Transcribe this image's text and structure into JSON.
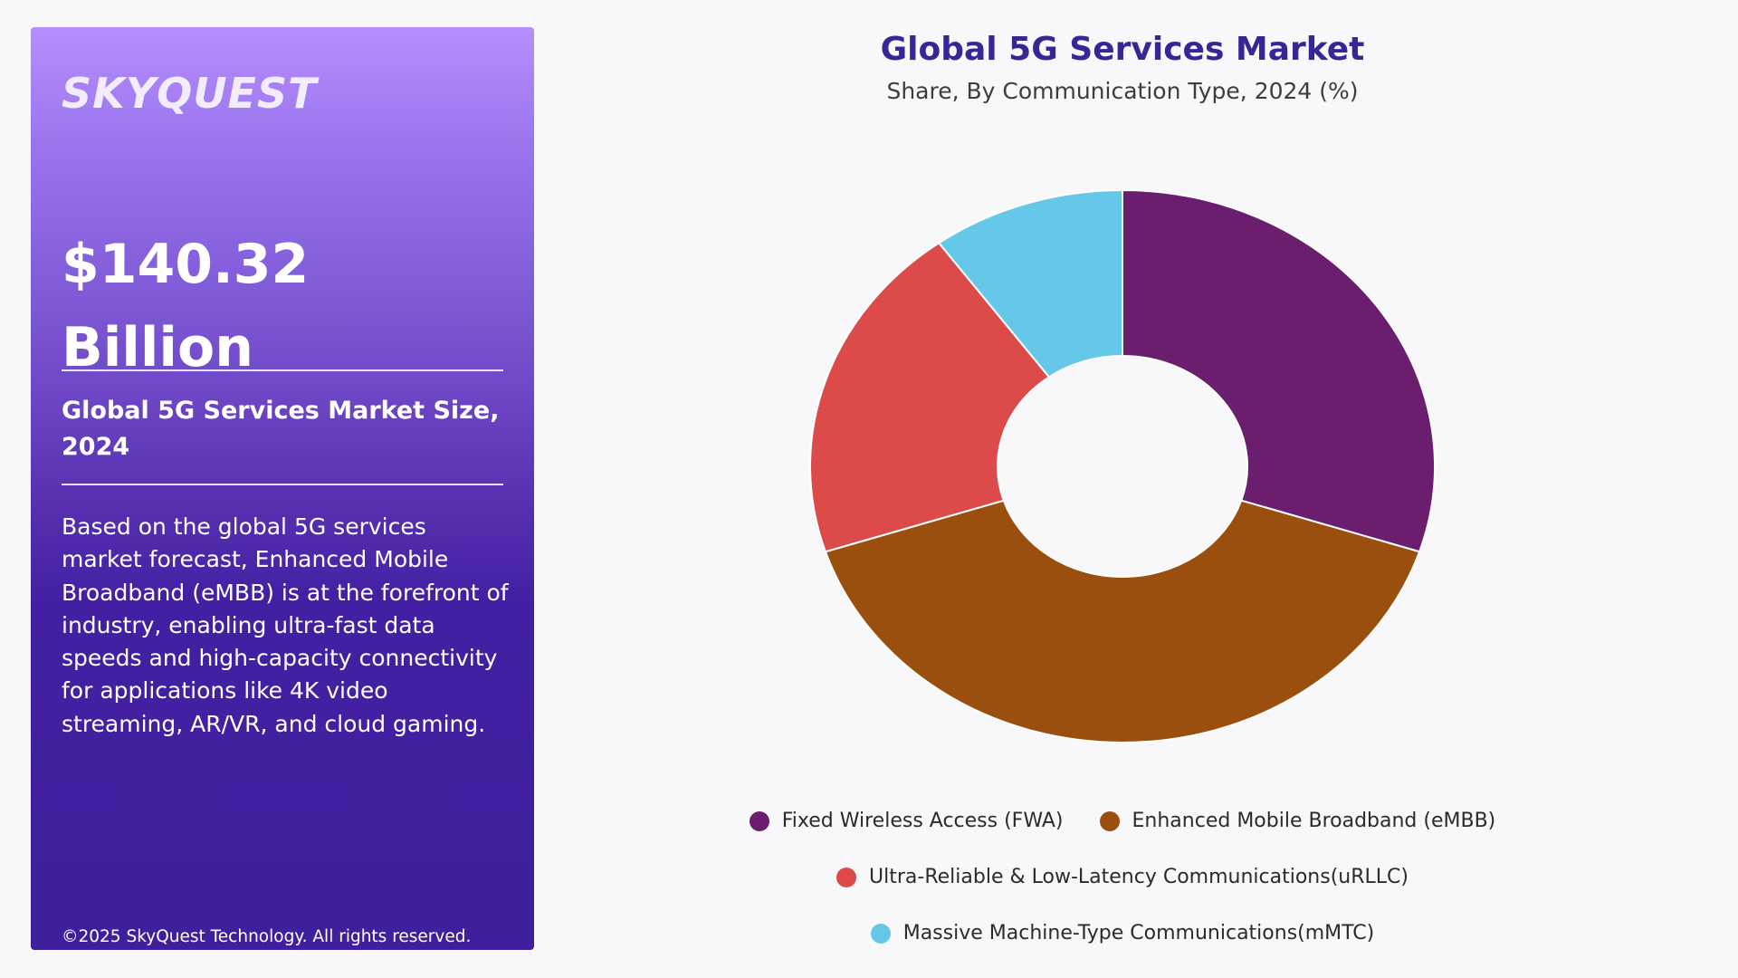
{
  "sidebar": {
    "logo": "SKYQUEST",
    "value_line1": "$140.32",
    "value_line2": "Billion",
    "size_label": "Global 5G Services Market Size, 2024",
    "description": "Based on the global 5G services market forecast, Enhanced Mobile Broadband (eMBB) is at the forefront of industry, enabling ultra-fast data speeds and high-capacity connectivity for applications like 4K video streaming, AR/VR, and cloud gaming.",
    "copyright": "©2025 SkyQuest Technology. All rights reserved."
  },
  "chart_data": {
    "type": "pie",
    "title": "Global 5G Services Market",
    "subtitle": "Share, By Communication Type, 2024 (%)",
    "donut": true,
    "legend_position": "bottom",
    "categories": [
      "Fixed Wireless Access (FWA)",
      "Enhanced Mobile Broadband (eMBB)",
      "Ultra-Reliable & Low-Latency Communications(uRLLC)",
      "Massive Machine-Type Communications(mMTC)"
    ],
    "values": [
      30,
      40,
      20,
      10
    ],
    "colors": [
      "#6b1d6e",
      "#9a4f0e",
      "#dc4a4a",
      "#66c8e8"
    ]
  }
}
